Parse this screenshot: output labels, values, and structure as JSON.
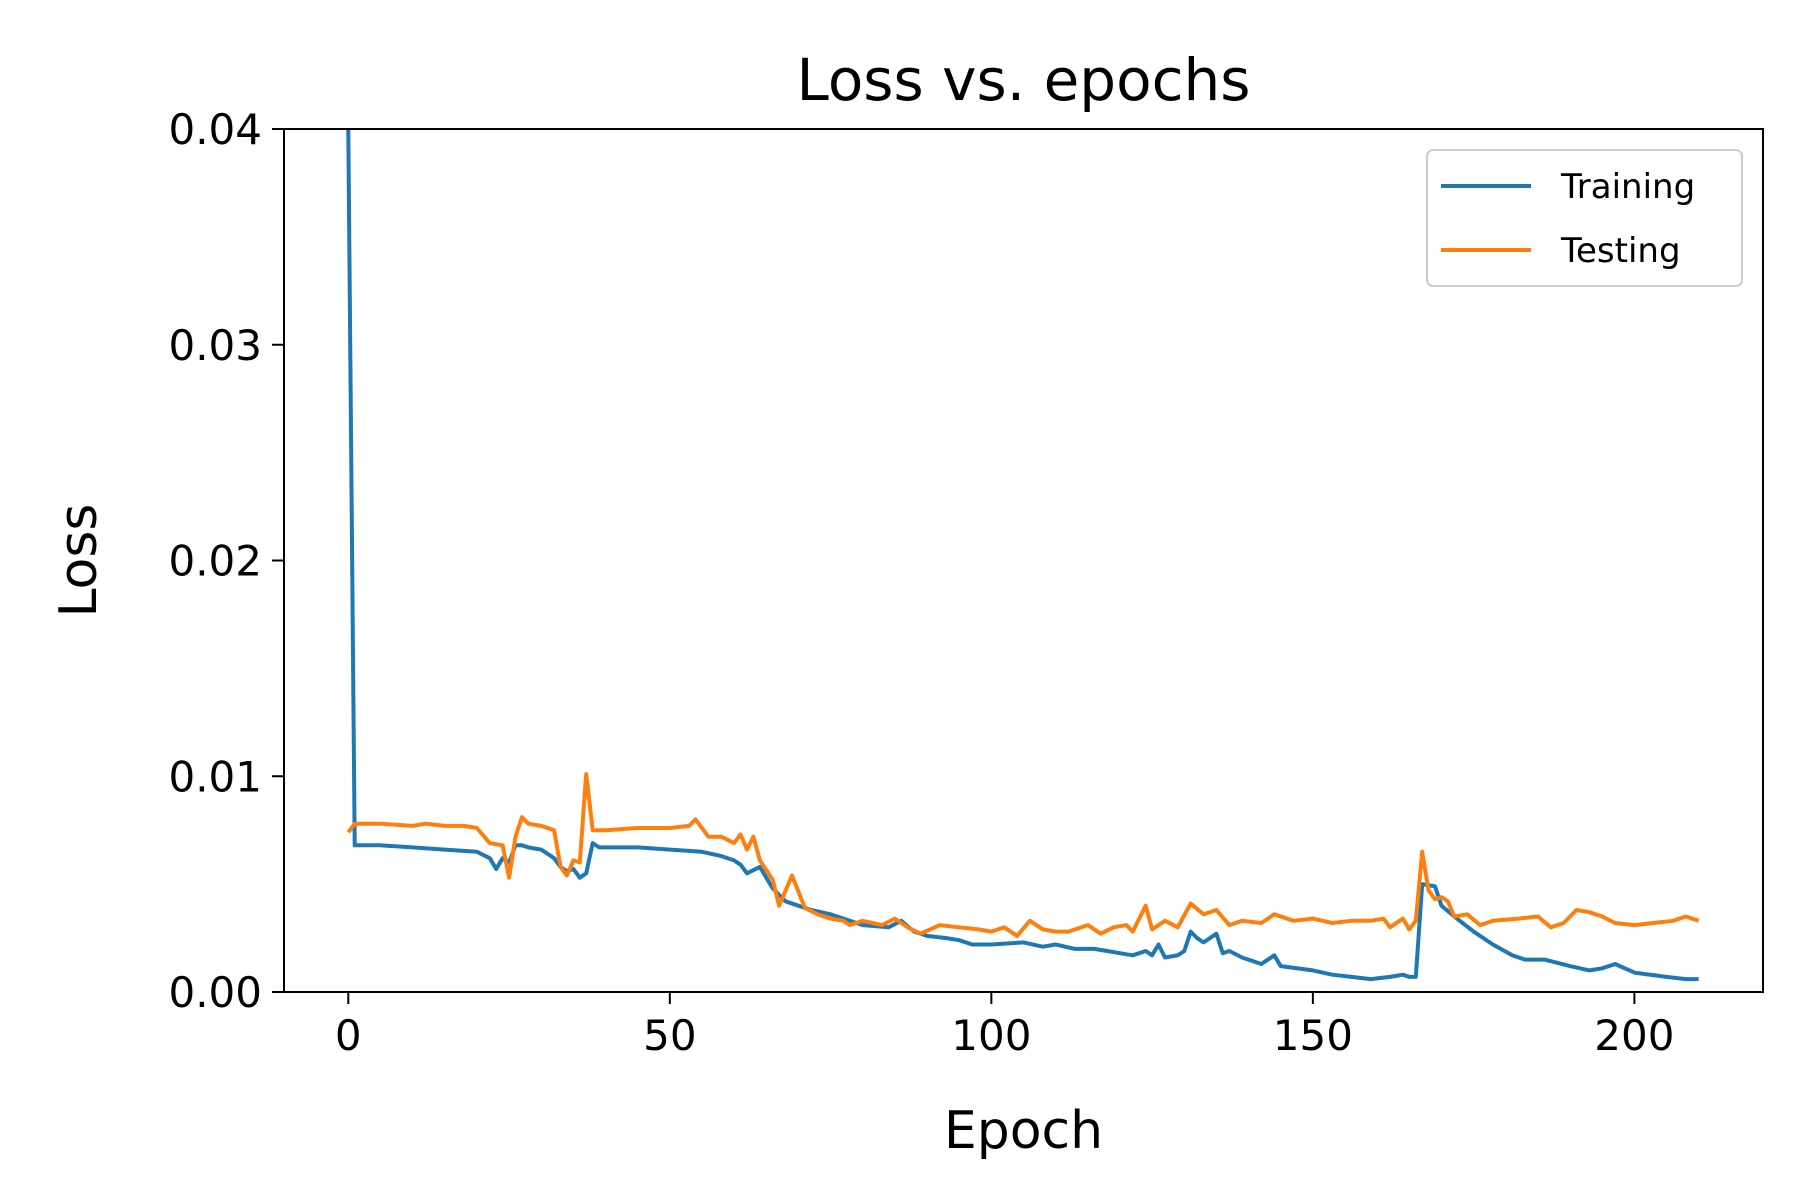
{
  "chart_data": {
    "type": "line",
    "title": "Loss vs. epochs",
    "xlabel": "Epoch",
    "ylabel": "Loss",
    "xlim": [
      -10,
      220
    ],
    "ylim": [
      0,
      0.04
    ],
    "xticks": [
      0,
      50,
      100,
      150,
      200
    ],
    "yticks": [
      0,
      0.01,
      0.02,
      0.03,
      0.04
    ],
    "xtick_labels": [
      "0",
      "50",
      "100",
      "150",
      "200"
    ],
    "ytick_labels": [
      "0.00",
      "0.01",
      "0.02",
      "0.03",
      "0.04"
    ],
    "grid": false,
    "legend_position": "top-right",
    "series": [
      {
        "name": "Training",
        "color": "#1f77b4",
        "points": [
          [
            0,
            0.04
          ],
          [
            1,
            0.0068
          ],
          [
            5,
            0.0068
          ],
          [
            10,
            0.0067
          ],
          [
            15,
            0.0066
          ],
          [
            20,
            0.0065
          ],
          [
            22,
            0.0062
          ],
          [
            23,
            0.0057
          ],
          [
            24,
            0.0062
          ],
          [
            25,
            0.006
          ],
          [
            26,
            0.0068
          ],
          [
            27,
            0.0068
          ],
          [
            28,
            0.0067
          ],
          [
            30,
            0.0066
          ],
          [
            32,
            0.0062
          ],
          [
            33,
            0.0058
          ],
          [
            34,
            0.0056
          ],
          [
            35,
            0.0057
          ],
          [
            36,
            0.0053
          ],
          [
            37,
            0.0055
          ],
          [
            38,
            0.0069
          ],
          [
            39,
            0.0067
          ],
          [
            45,
            0.0067
          ],
          [
            50,
            0.0066
          ],
          [
            55,
            0.0065
          ],
          [
            58,
            0.0063
          ],
          [
            60,
            0.0061
          ],
          [
            61,
            0.0059
          ],
          [
            62,
            0.0055
          ],
          [
            64,
            0.0058
          ],
          [
            66,
            0.0048
          ],
          [
            68,
            0.0042
          ],
          [
            70,
            0.004
          ],
          [
            72,
            0.0038
          ],
          [
            75,
            0.0036
          ],
          [
            78,
            0.0033
          ],
          [
            80,
            0.0031
          ],
          [
            84,
            0.003
          ],
          [
            86,
            0.0033
          ],
          [
            88,
            0.0028
          ],
          [
            90,
            0.0026
          ],
          [
            93,
            0.0025
          ],
          [
            95,
            0.0024
          ],
          [
            97,
            0.0022
          ],
          [
            100,
            0.0022
          ],
          [
            105,
            0.0023
          ],
          [
            108,
            0.0021
          ],
          [
            110,
            0.0022
          ],
          [
            113,
            0.002
          ],
          [
            116,
            0.002
          ],
          [
            118,
            0.0019
          ],
          [
            120,
            0.0018
          ],
          [
            122,
            0.0017
          ],
          [
            124,
            0.0019
          ],
          [
            125,
            0.0017
          ],
          [
            126,
            0.0022
          ],
          [
            127,
            0.0016
          ],
          [
            129,
            0.0017
          ],
          [
            130,
            0.0019
          ],
          [
            131,
            0.0028
          ],
          [
            132,
            0.0025
          ],
          [
            133,
            0.0023
          ],
          [
            135,
            0.0027
          ],
          [
            136,
            0.0018
          ],
          [
            137,
            0.0019
          ],
          [
            139,
            0.0016
          ],
          [
            142,
            0.0013
          ],
          [
            144,
            0.0017
          ],
          [
            145,
            0.0012
          ],
          [
            150,
            0.001
          ],
          [
            153,
            0.0008
          ],
          [
            156,
            0.0007
          ],
          [
            159,
            0.0006
          ],
          [
            162,
            0.0007
          ],
          [
            164,
            0.0008
          ],
          [
            165,
            0.0007
          ],
          [
            166,
            0.0007
          ],
          [
            167,
            0.005
          ],
          [
            169,
            0.0049
          ],
          [
            170,
            0.004
          ],
          [
            172,
            0.0035
          ],
          [
            175,
            0.0028
          ],
          [
            178,
            0.0022
          ],
          [
            181,
            0.0017
          ],
          [
            183,
            0.0015
          ],
          [
            186,
            0.0015
          ],
          [
            190,
            0.0012
          ],
          [
            193,
            0.001
          ],
          [
            195,
            0.0011
          ],
          [
            197,
            0.0013
          ],
          [
            200,
            0.0009
          ],
          [
            205,
            0.0007
          ],
          [
            208,
            0.0006
          ],
          [
            210,
            0.0006
          ]
        ]
      },
      {
        "name": "Testing",
        "color": "#ff7f0e",
        "points": [
          [
            0,
            0.0074
          ],
          [
            1,
            0.0078
          ],
          [
            5,
            0.0078
          ],
          [
            10,
            0.0077
          ],
          [
            12,
            0.0078
          ],
          [
            15,
            0.0077
          ],
          [
            18,
            0.0077
          ],
          [
            20,
            0.0076
          ],
          [
            22,
            0.0069
          ],
          [
            24,
            0.0068
          ],
          [
            25,
            0.0053
          ],
          [
            26,
            0.0072
          ],
          [
            27,
            0.0081
          ],
          [
            28,
            0.0078
          ],
          [
            30,
            0.0077
          ],
          [
            32,
            0.0075
          ],
          [
            33,
            0.0058
          ],
          [
            34,
            0.0054
          ],
          [
            35,
            0.0061
          ],
          [
            36,
            0.006
          ],
          [
            37,
            0.0101
          ],
          [
            38,
            0.0075
          ],
          [
            40,
            0.0075
          ],
          [
            45,
            0.0076
          ],
          [
            50,
            0.0076
          ],
          [
            53,
            0.0077
          ],
          [
            54,
            0.008
          ],
          [
            56,
            0.0072
          ],
          [
            58,
            0.0072
          ],
          [
            60,
            0.0069
          ],
          [
            61,
            0.0073
          ],
          [
            62,
            0.0066
          ],
          [
            63,
            0.0072
          ],
          [
            64,
            0.0061
          ],
          [
            66,
            0.0052
          ],
          [
            67,
            0.004
          ],
          [
            68,
            0.0047
          ],
          [
            69,
            0.0054
          ],
          [
            71,
            0.0039
          ],
          [
            73,
            0.0036
          ],
          [
            75,
            0.0034
          ],
          [
            77,
            0.0033
          ],
          [
            78,
            0.0031
          ],
          [
            80,
            0.0033
          ],
          [
            83,
            0.0031
          ],
          [
            85,
            0.0034
          ],
          [
            87,
            0.003
          ],
          [
            89,
            0.0027
          ],
          [
            92,
            0.0031
          ],
          [
            95,
            0.003
          ],
          [
            98,
            0.0029
          ],
          [
            100,
            0.0028
          ],
          [
            102,
            0.003
          ],
          [
            104,
            0.0026
          ],
          [
            106,
            0.0033
          ],
          [
            108,
            0.0029
          ],
          [
            110,
            0.0028
          ],
          [
            112,
            0.0028
          ],
          [
            115,
            0.0031
          ],
          [
            117,
            0.0027
          ],
          [
            119,
            0.003
          ],
          [
            121,
            0.0031
          ],
          [
            122,
            0.0028
          ],
          [
            124,
            0.004
          ],
          [
            125,
            0.0029
          ],
          [
            127,
            0.0033
          ],
          [
            129,
            0.003
          ],
          [
            131,
            0.0041
          ],
          [
            133,
            0.0036
          ],
          [
            135,
            0.0038
          ],
          [
            137,
            0.0031
          ],
          [
            139,
            0.0033
          ],
          [
            142,
            0.0032
          ],
          [
            144,
            0.0036
          ],
          [
            147,
            0.0033
          ],
          [
            150,
            0.0034
          ],
          [
            153,
            0.0032
          ],
          [
            156,
            0.0033
          ],
          [
            159,
            0.0033
          ],
          [
            161,
            0.0034
          ],
          [
            162,
            0.003
          ],
          [
            164,
            0.0034
          ],
          [
            165,
            0.0029
          ],
          [
            166,
            0.0033
          ],
          [
            167,
            0.0065
          ],
          [
            168,
            0.0047
          ],
          [
            169,
            0.0043
          ],
          [
            170,
            0.0044
          ],
          [
            171,
            0.0042
          ],
          [
            172,
            0.0035
          ],
          [
            174,
            0.0036
          ],
          [
            176,
            0.0031
          ],
          [
            178,
            0.0033
          ],
          [
            182,
            0.0034
          ],
          [
            185,
            0.0035
          ],
          [
            187,
            0.003
          ],
          [
            189,
            0.0032
          ],
          [
            191,
            0.0038
          ],
          [
            193,
            0.0037
          ],
          [
            195,
            0.0035
          ],
          [
            197,
            0.0032
          ],
          [
            200,
            0.0031
          ],
          [
            203,
            0.0032
          ],
          [
            206,
            0.0033
          ],
          [
            208,
            0.0035
          ],
          [
            210,
            0.0033
          ]
        ]
      }
    ]
  }
}
